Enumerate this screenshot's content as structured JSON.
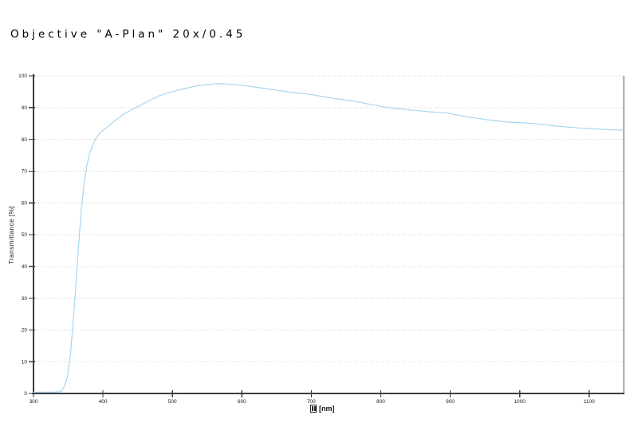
{
  "chart_data": {
    "type": "line",
    "title": "Objective \"A-Plan\" 20x/0.45",
    "xlabel": "λ [nm]",
    "xlabel_display": "[nm]",
    "xlabel_symbol_rendered_as": "missing-glyph-box",
    "ylabel": "Transmittance [%]",
    "xlim": [
      300,
      1150
    ],
    "ylim": [
      0,
      100
    ],
    "xticks": [
      300,
      400,
      500,
      600,
      700,
      800,
      900,
      1000,
      1100
    ],
    "yticks": [
      0,
      10,
      20,
      30,
      40,
      50,
      60,
      70,
      80,
      90,
      100
    ],
    "grid": "horizontal-dotted",
    "legend": "none",
    "style": {
      "background": "#ffffff",
      "curve_color": "#a7d6f1",
      "axis_color": "#3d3d3d",
      "grid_color": "#c6c6c6",
      "frame_right_color": "#8c8c8c",
      "tick_text_color": "#1a1a1a",
      "title_color": "#000000"
    },
    "series": [
      {
        "name": "Transmittance",
        "color": "#a7d6f1",
        "points": [
          [
            300,
            0.4
          ],
          [
            315,
            0.4
          ],
          [
            330,
            0.4
          ],
          [
            337,
            0.5
          ],
          [
            341,
            1
          ],
          [
            345,
            2.5
          ],
          [
            349,
            5.5
          ],
          [
            353,
            12
          ],
          [
            357,
            22
          ],
          [
            361,
            34
          ],
          [
            365,
            47
          ],
          [
            369,
            58
          ],
          [
            373,
            66.5
          ],
          [
            377,
            72
          ],
          [
            381,
            75.5
          ],
          [
            385,
            78
          ],
          [
            389,
            80
          ],
          [
            394,
            81.5
          ],
          [
            400,
            82.8
          ],
          [
            407,
            84
          ],
          [
            414,
            85.3
          ],
          [
            421,
            86.5
          ],
          [
            428,
            87.7
          ],
          [
            435,
            88.6
          ],
          [
            442,
            89.4
          ],
          [
            450,
            90.3
          ],
          [
            458,
            91.2
          ],
          [
            466,
            92.1
          ],
          [
            474,
            93
          ],
          [
            482,
            93.8
          ],
          [
            490,
            94.4
          ],
          [
            500,
            95
          ],
          [
            510,
            95.6
          ],
          [
            520,
            96.1
          ],
          [
            530,
            96.6
          ],
          [
            540,
            97
          ],
          [
            548,
            97.2
          ],
          [
            556,
            97.4
          ],
          [
            564,
            97.5
          ],
          [
            572,
            97.5
          ],
          [
            580,
            97.4
          ],
          [
            588,
            97.3
          ],
          [
            596,
            97.1
          ],
          [
            604,
            96.9
          ],
          [
            612,
            96.7
          ],
          [
            620,
            96.4
          ],
          [
            628,
            96.2
          ],
          [
            636,
            95.9
          ],
          [
            644,
            95.7
          ],
          [
            652,
            95.4
          ],
          [
            660,
            95.2
          ],
          [
            668,
            94.9
          ],
          [
            676,
            94.7
          ],
          [
            684,
            94.5
          ],
          [
            692,
            94.3
          ],
          [
            700,
            94.1
          ],
          [
            708,
            93.8
          ],
          [
            716,
            93.5
          ],
          [
            724,
            93.2
          ],
          [
            732,
            92.9
          ],
          [
            740,
            92.7
          ],
          [
            748,
            92.4
          ],
          [
            756,
            92.2
          ],
          [
            764,
            91.9
          ],
          [
            772,
            91.6
          ],
          [
            780,
            91.2
          ],
          [
            788,
            90.9
          ],
          [
            796,
            90.6
          ],
          [
            804,
            90.2
          ],
          [
            812,
            90
          ],
          [
            820,
            89.8
          ],
          [
            828,
            89.6
          ],
          [
            836,
            89.4
          ],
          [
            844,
            89.2
          ],
          [
            852,
            89.1
          ],
          [
            860,
            88.9
          ],
          [
            868,
            88.7
          ],
          [
            876,
            88.6
          ],
          [
            884,
            88.5
          ],
          [
            892,
            88.4
          ],
          [
            900,
            88.1
          ],
          [
            908,
            87.8
          ],
          [
            916,
            87.4
          ],
          [
            924,
            87.1
          ],
          [
            932,
            86.8
          ],
          [
            940,
            86.6
          ],
          [
            948,
            86.3
          ],
          [
            956,
            86.1
          ],
          [
            964,
            85.9
          ],
          [
            972,
            85.7
          ],
          [
            980,
            85.5
          ],
          [
            988,
            85.4
          ],
          [
            996,
            85.3
          ],
          [
            1004,
            85.2
          ],
          [
            1012,
            85.1
          ],
          [
            1020,
            85
          ],
          [
            1028,
            84.8
          ],
          [
            1036,
            84.6
          ],
          [
            1044,
            84.4
          ],
          [
            1052,
            84.2
          ],
          [
            1060,
            84.1
          ],
          [
            1068,
            83.9
          ],
          [
            1076,
            83.8
          ],
          [
            1084,
            83.6
          ],
          [
            1092,
            83.5
          ],
          [
            1100,
            83.4
          ],
          [
            1108,
            83.3
          ],
          [
            1116,
            83.2
          ],
          [
            1124,
            83.1
          ],
          [
            1132,
            83
          ],
          [
            1140,
            83
          ],
          [
            1150,
            82.9
          ]
        ]
      }
    ]
  }
}
